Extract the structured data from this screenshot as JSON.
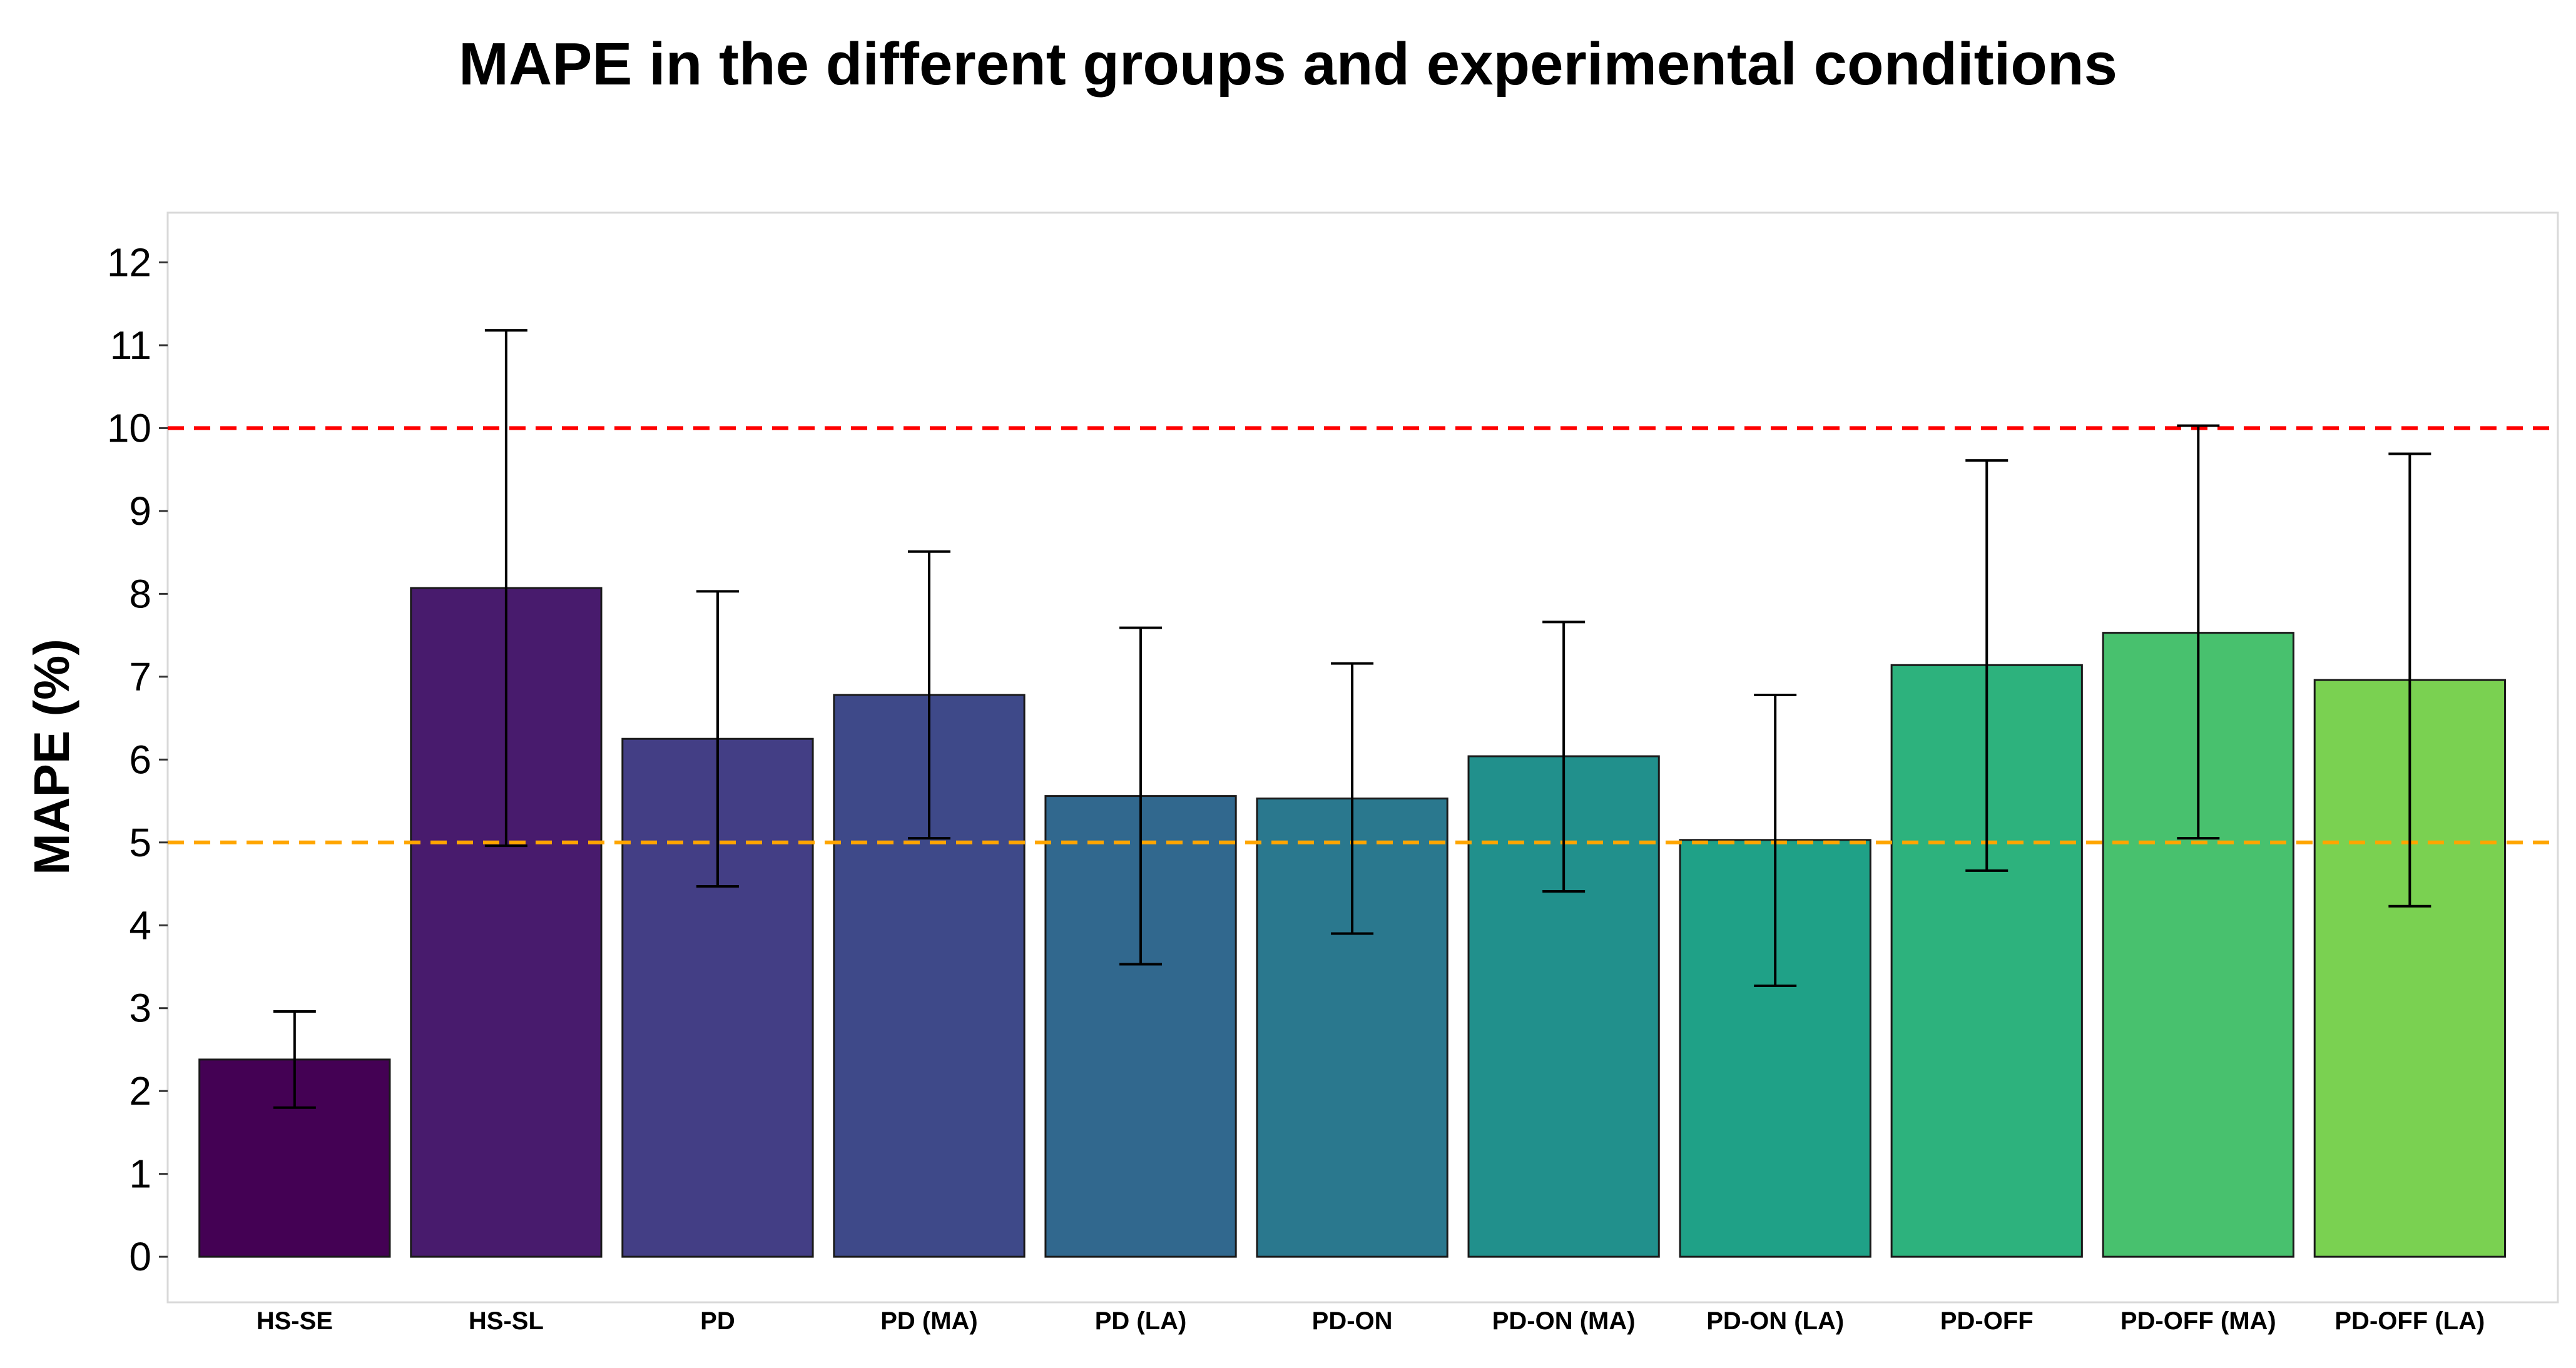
{
  "chart_data": {
    "type": "bar",
    "title": "MAPE in the different groups and experimental conditions",
    "xlabel": "",
    "ylabel": "MAPE (%)",
    "ylim": [
      -0.55,
      12.6
    ],
    "yticks": [
      0,
      1,
      2,
      3,
      4,
      5,
      6,
      7,
      8,
      9,
      10,
      11,
      12
    ],
    "grid": false,
    "categories": [
      "HS-SE",
      "HS-SL",
      "PD",
      "PD (MA)",
      "PD (LA)",
      "PD-ON",
      "PD-ON (MA)",
      "PD-ON (LA)",
      "PD-OFF",
      "PD-OFF (MA)",
      "PD-OFF (LA)"
    ],
    "values": [
      2.38,
      8.07,
      6.25,
      6.78,
      5.56,
      5.53,
      6.04,
      5.03,
      7.14,
      7.53,
      6.96
    ],
    "error_low": [
      1.8,
      4.96,
      4.47,
      5.05,
      3.53,
      3.9,
      4.41,
      3.27,
      4.66,
      5.05,
      4.23
    ],
    "error_high": [
      2.96,
      11.18,
      8.03,
      8.51,
      7.59,
      7.16,
      7.66,
      6.78,
      9.61,
      10.03,
      9.69
    ],
    "colors": [
      "#440154",
      "#481b6d",
      "#433e85",
      "#3e4989",
      "#31688e",
      "#2a788e",
      "#21908c",
      "#1fa187",
      "#2db27d",
      "#48c16e",
      "#7ad151"
    ],
    "reference_lines": [
      {
        "value": 10,
        "color": "#ff0000",
        "style": "dashed"
      },
      {
        "value": 5,
        "color": "#ffa500",
        "style": "dashed"
      }
    ]
  }
}
